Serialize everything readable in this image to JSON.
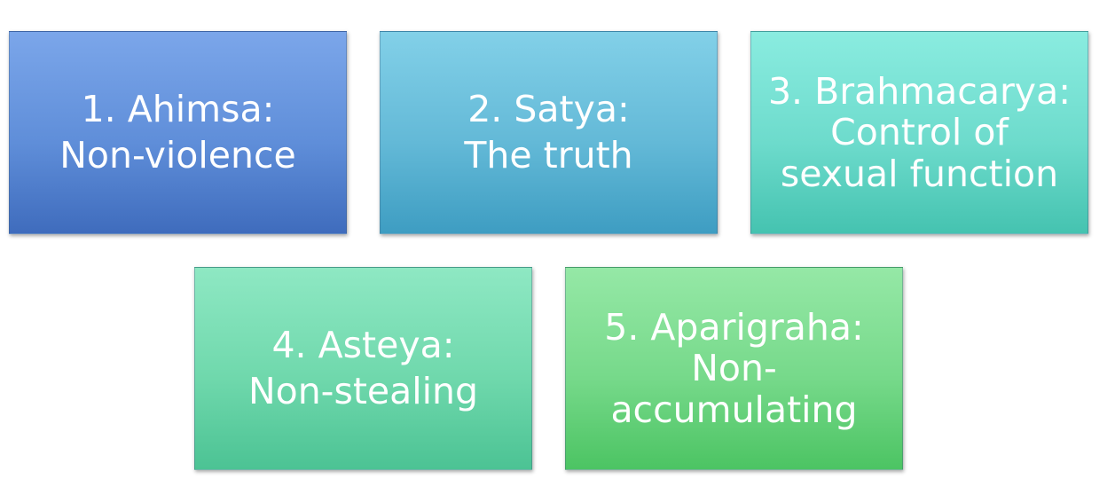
{
  "boxes": [
    {
      "lines": [
        "1. Ahimsa:",
        "Non-violence"
      ]
    },
    {
      "lines": [
        "2. Satya:",
        "The truth"
      ]
    },
    {
      "lines": [
        "3. Brahmacarya:",
        "Control of",
        "sexual function"
      ]
    },
    {
      "lines": [
        "4. Asteya:",
        "Non-stealing"
      ]
    },
    {
      "lines": [
        "5. Aparigraha:",
        "Non-",
        "accumulating"
      ]
    }
  ]
}
